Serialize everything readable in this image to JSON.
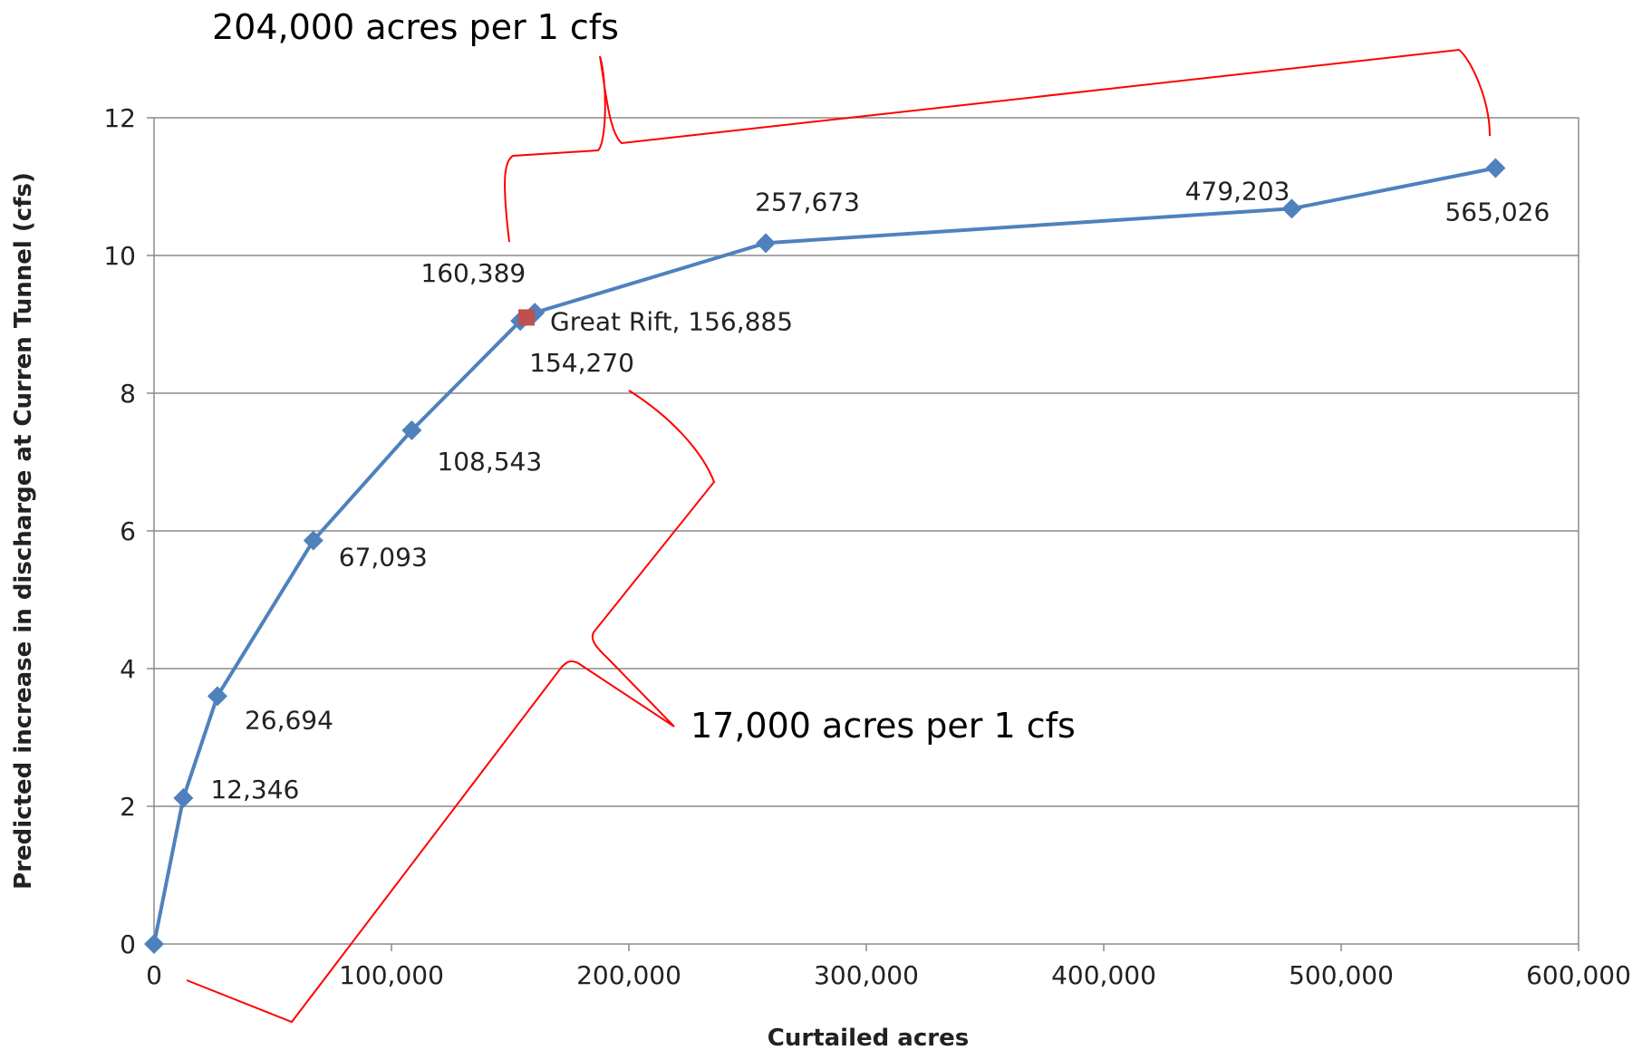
{
  "chart_data": {
    "type": "scatter",
    "xlabel": "Curtailed acres",
    "ylabel": "Predicted increase in discharge at Curren Tunnel (cfs)",
    "xlim": [
      0,
      600000
    ],
    "ylim": [
      0,
      12
    ],
    "xticks": [
      0,
      100000,
      200000,
      300000,
      400000,
      500000,
      600000
    ],
    "xtick_labels": [
      "0",
      "100,000",
      "200,000",
      "300,000",
      "400,000",
      "500,000",
      "600,000"
    ],
    "yticks": [
      0,
      2,
      4,
      6,
      8,
      10,
      12
    ],
    "ytick_labels": [
      "0",
      "2",
      "4",
      "6",
      "8",
      "10",
      "12"
    ],
    "grid": true,
    "series": [
      {
        "color": "#4f81bd",
        "marker": "diamond",
        "points": [
          {
            "x": 0,
            "y": 0,
            "label": ""
          },
          {
            "x": 12346,
            "y": 2.12,
            "label": "12,346"
          },
          {
            "x": 26694,
            "y": 3.6,
            "label": "26,694"
          },
          {
            "x": 67093,
            "y": 5.86,
            "label": "67,093"
          },
          {
            "x": 108543,
            "y": 7.46,
            "label": "108,543"
          },
          {
            "x": 154270,
            "y": 9.05,
            "label": "154,270"
          },
          {
            "x": 160389,
            "y": 9.17,
            "label": "160,389"
          },
          {
            "x": 257673,
            "y": 10.18,
            "label": "257,673"
          },
          {
            "x": 479203,
            "y": 10.68,
            "label": "479,203"
          },
          {
            "x": 565026,
            "y": 11.27,
            "label": "565,026"
          }
        ]
      },
      {
        "color": "#c0504d",
        "marker": "square",
        "points": [
          {
            "x": 156885,
            "y": 9.1,
            "label": "Great Rift, 156,885"
          }
        ]
      }
    ],
    "annotations": [
      {
        "text": "204,000 acres per 1 cfs",
        "color": "#000000",
        "bracket_color": "#ff0000"
      },
      {
        "text": "17,000 acres per 1 cfs",
        "color": "#000000",
        "bracket_color": "#ff0000"
      }
    ]
  }
}
